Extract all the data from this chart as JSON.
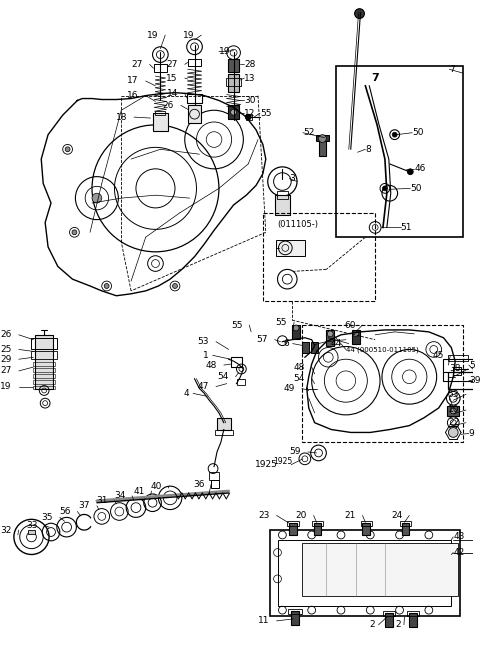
{
  "bg_color": "#ffffff",
  "line_color": "#1a1a1a",
  "figsize": [
    4.8,
    6.54
  ],
  "dpi": 100
}
